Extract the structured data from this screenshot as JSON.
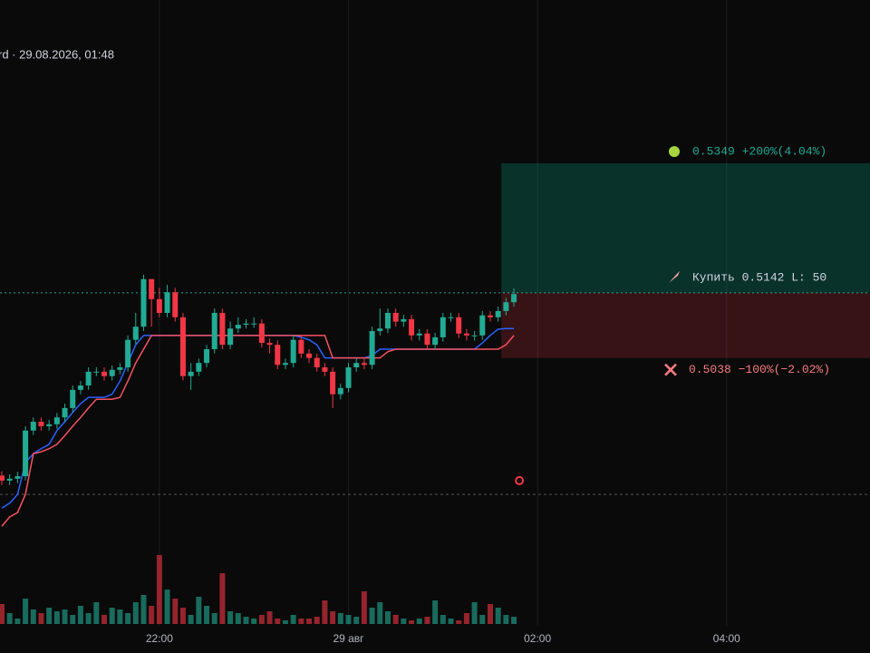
{
  "chart_data": {
    "type": "candlestick",
    "title": "rd · 29.08.2026, 01:48",
    "xlim": [
      -0.23,
      110.2
    ],
    "ylim": [
      0.461,
      0.561
    ],
    "vlim": [
      0,
      80
    ],
    "xticks": [
      {
        "value": 20,
        "label": "22:00"
      },
      {
        "value": 44,
        "label": "29 авг"
      },
      {
        "value": 68,
        "label": "02:00"
      },
      {
        "value": 92,
        "label": "04:00"
      }
    ],
    "up_color": "#22ab94",
    "down_color": "#f23645",
    "open": [
      0.485,
      0.4842,
      0.4845,
      0.4849,
      0.4922,
      0.4936,
      0.4929,
      0.4932,
      0.4943,
      0.4958,
      0.4987,
      0.4994,
      0.5016,
      0.5016,
      0.5009,
      0.5019,
      0.5023,
      0.5067,
      0.5088,
      0.5164,
      0.5132,
      0.511,
      0.5143,
      0.5103,
      0.5009,
      0.5016,
      0.503,
      0.5052,
      0.511,
      0.5059,
      0.5085,
      0.5091,
      0.5093,
      0.5093,
      0.5062,
      0.5059,
      0.5027,
      0.503,
      0.5067,
      0.5045,
      0.5038,
      0.5023,
      0.5016,
      0.498,
      0.499,
      0.5023,
      0.503,
      0.5027,
      0.5081,
      0.5085,
      0.511,
      0.5096,
      0.51,
      0.5074,
      0.5077,
      0.5059,
      0.5071,
      0.5103,
      0.5103,
      0.5077,
      0.5074,
      0.5074,
      0.5106,
      0.5103,
      0.5113,
      0.5127
    ],
    "high": [
      0.4857,
      0.4852,
      0.4856,
      0.4929,
      0.4943,
      0.4943,
      0.4939,
      0.495,
      0.4965,
      0.4994,
      0.5001,
      0.5023,
      0.5023,
      0.5023,
      0.5026,
      0.503,
      0.5074,
      0.511,
      0.5171,
      0.5164,
      0.515,
      0.5155,
      0.515,
      0.511,
      0.503,
      0.5037,
      0.5059,
      0.5117,
      0.5117,
      0.5096,
      0.5103,
      0.51,
      0.5103,
      0.51,
      0.5069,
      0.5066,
      0.5037,
      0.5074,
      0.5074,
      0.5052,
      0.5045,
      0.503,
      0.5023,
      0.4997,
      0.503,
      0.5037,
      0.5037,
      0.5088,
      0.5117,
      0.5117,
      0.5117,
      0.5107,
      0.5107,
      0.5084,
      0.5084,
      0.5078,
      0.511,
      0.511,
      0.511,
      0.5084,
      0.5081,
      0.5113,
      0.5113,
      0.512,
      0.5134,
      0.5149
    ],
    "low": [
      0.4835,
      0.4835,
      0.4838,
      0.4842,
      0.4915,
      0.4922,
      0.4922,
      0.4925,
      0.4936,
      0.4951,
      0.498,
      0.4987,
      0.5009,
      0.5002,
      0.5002,
      0.5012,
      0.5016,
      0.506,
      0.5081,
      0.5088,
      0.5103,
      0.5103,
      0.5096,
      0.5002,
      0.4987,
      0.5009,
      0.5023,
      0.5045,
      0.5052,
      0.5052,
      0.5078,
      0.5085,
      0.5086,
      0.5055,
      0.5045,
      0.502,
      0.502,
      0.5023,
      0.5038,
      0.503,
      0.5016,
      0.5009,
      0.4958,
      0.4972,
      0.4983,
      0.5016,
      0.502,
      0.502,
      0.5074,
      0.5078,
      0.5088,
      0.5088,
      0.5066,
      0.5066,
      0.5052,
      0.5052,
      0.5064,
      0.5096,
      0.507,
      0.5066,
      0.5066,
      0.5067,
      0.5096,
      0.5096,
      0.5106,
      0.512
    ],
    "close": [
      0.4842,
      0.4845,
      0.4849,
      0.4922,
      0.4936,
      0.4929,
      0.4932,
      0.4943,
      0.4958,
      0.4987,
      0.4994,
      0.5016,
      0.5016,
      0.5009,
      0.5019,
      0.5023,
      0.5067,
      0.5088,
      0.5164,
      0.5132,
      0.511,
      0.5143,
      0.5103,
      0.5009,
      0.5016,
      0.503,
      0.5052,
      0.511,
      0.5059,
      0.5085,
      0.5091,
      0.5093,
      0.5093,
      0.5062,
      0.5059,
      0.5027,
      0.503,
      0.5067,
      0.5045,
      0.5038,
      0.5023,
      0.5016,
      0.498,
      0.499,
      0.5023,
      0.503,
      0.5027,
      0.5081,
      0.5085,
      0.511,
      0.5096,
      0.51,
      0.5074,
      0.5077,
      0.5059,
      0.5071,
      0.5103,
      0.5103,
      0.5077,
      0.5074,
      0.5074,
      0.5106,
      0.5103,
      0.5113,
      0.5127,
      0.514
    ],
    "volume": [
      22,
      12,
      6,
      28,
      16,
      12,
      18,
      14,
      16,
      10,
      20,
      12,
      24,
      10,
      18,
      16,
      12,
      24,
      32,
      20,
      76,
      38,
      28,
      18,
      10,
      30,
      20,
      12,
      56,
      14,
      12,
      8,
      6,
      10,
      14,
      6,
      4,
      10,
      6,
      6,
      8,
      26,
      14,
      12,
      10,
      8,
      36,
      18,
      24,
      14,
      10,
      6,
      4,
      6,
      8,
      26,
      10,
      6,
      4,
      12,
      24,
      10,
      22,
      18,
      10,
      8
    ],
    "lines": [
      {
        "color": "#2962ff",
        "values": [
          0.4798,
          0.4806,
          0.482,
          0.4871,
          0.4885,
          0.4893,
          0.49,
          0.4922,
          0.4936,
          0.4951,
          0.4965,
          0.4975,
          0.4975,
          0.4975,
          0.498,
          0.5001,
          0.503,
          0.5059,
          0.5074,
          0.5074,
          0.5074,
          0.5074,
          0.5074,
          0.5074,
          0.5074,
          0.5074,
          0.5074,
          0.5074,
          0.5074,
          0.5074,
          0.5074,
          0.5074,
          0.5074,
          0.5074,
          0.5074,
          0.5074,
          0.5074,
          0.5074,
          0.5071,
          0.5067,
          0.5059,
          0.5038,
          0.5038,
          0.5038,
          0.5038,
          0.5038,
          0.5038,
          0.5042,
          0.5052,
          0.5052,
          0.5052,
          0.5052,
          0.5052,
          0.5052,
          0.5052,
          0.5052,
          0.5052,
          0.5052,
          0.5052,
          0.5052,
          0.5052,
          0.5062,
          0.5074,
          0.5084,
          0.5085,
          0.5085
        ]
      },
      {
        "color": "#f7525f",
        "values": [
          0.4769,
          0.4784,
          0.4791,
          0.482,
          0.4885,
          0.4888,
          0.4893,
          0.49,
          0.4914,
          0.4929,
          0.4943,
          0.4958,
          0.4972,
          0.4972,
          0.4972,
          0.4975,
          0.5001,
          0.503,
          0.5052,
          0.5074,
          0.5074,
          0.5074,
          0.5074,
          0.5074,
          0.5074,
          0.5074,
          0.5074,
          0.5074,
          0.5074,
          0.5074,
          0.5074,
          0.5074,
          0.5074,
          0.5074,
          0.5074,
          0.5074,
          0.5074,
          0.5074,
          0.5074,
          0.5074,
          0.5074,
          0.5074,
          0.5038,
          0.5038,
          0.5038,
          0.5038,
          0.5038,
          0.5038,
          0.5038,
          0.5048,
          0.5052,
          0.5052,
          0.5052,
          0.5052,
          0.5052,
          0.5052,
          0.5052,
          0.5052,
          0.5052,
          0.5052,
          0.5052,
          0.5052,
          0.5052,
          0.5052,
          0.5059,
          0.5074
        ]
      }
    ],
    "level": 0.482,
    "alert": {
      "x": 65.7,
      "price": 0.4842
    },
    "position": {
      "start": 63.4,
      "entry": 0.5142,
      "take_profit": 0.5349,
      "stop_loss": 0.5038,
      "take_profit_label": "0.5349 +200%(4.04%)",
      "entry_label": "Купить 0.5142 L: 50",
      "stop_loss_label": "0.5038 −100%(−2.02%)"
    }
  }
}
